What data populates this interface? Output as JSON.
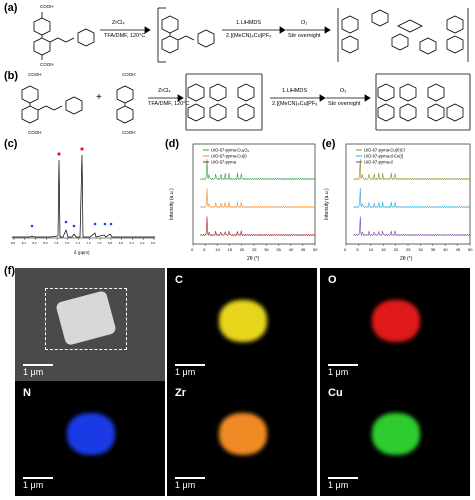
{
  "panels": {
    "a": "(a)",
    "b": "(b)",
    "c": "(c)",
    "d": "(d)",
    "e": "(e)",
    "f": "(f)"
  },
  "scheme": {
    "a_step1_top": "ZrCl₄",
    "a_step1_bot": "TFA/DMF, 120°C",
    "a_step2_top": "1.LiHMDS",
    "a_step2_bot": "2.[(MeCN)₄Cu]PF₆",
    "a_step3_top": "O₂",
    "a_step3_bot": "Stir overnight",
    "b_step1_top": "ZrCl₄",
    "b_step1_bot": "TFA/DMF, 120°C",
    "b_step2_top": "1.LiHMDS",
    "b_step2_bot": "2.[(MeCN)₄Cu]PF₆",
    "b_step3_top": "O₂",
    "b_step3_bot": "Stir overnight",
    "plus": "+",
    "cooh": "COOH"
  },
  "nmr": {
    "xlabel": "δ (ppm)",
    "ticks": [
      "8.6",
      "8.4",
      "8.2",
      "8.0",
      "7.8",
      "7.6",
      "7.4",
      "7.2",
      "7.0",
      "6.8",
      "6.6",
      "6.4",
      "6.2",
      "6.0"
    ]
  },
  "chart_data": [
    {
      "type": "line",
      "panel": "d",
      "xlabel": "2θ (°)",
      "ylabel": "Intensity (a.u.)",
      "xlim": [
        0,
        50
      ],
      "xticks": [
        0,
        5,
        10,
        15,
        20,
        25,
        30,
        35,
        40,
        45,
        50
      ],
      "series": [
        {
          "name": "UiO-67-pyma-Cu₂O₂",
          "color": "#2e9d3a"
        },
        {
          "name": "UiO-67-pyma-Cu(I)",
          "color": "#f08a24"
        },
        {
          "name": "UiO-67-pyma",
          "color": "#9b1c1c"
        }
      ]
    },
    {
      "type": "line",
      "panel": "e",
      "xlabel": "2θ (°)",
      "ylabel": "Intensity (a.u.)",
      "xlim": [
        0,
        50
      ],
      "xticks": [
        0,
        5,
        10,
        15,
        20,
        25,
        30,
        35,
        40,
        45,
        50
      ],
      "series": [
        {
          "name": "UiO-67-pyma-Cu(II)Cl",
          "color": "#8a8a1e"
        },
        {
          "name": "UiO-67-pyma-d-Cu(I)",
          "color": "#2aa8e0"
        },
        {
          "name": "UiO-67-pyma-d",
          "color": "#7b3fa0"
        }
      ]
    }
  ],
  "eds": {
    "scale": "1 μm",
    "tiles": [
      {
        "label": "C",
        "color": "#e6d51a"
      },
      {
        "label": "O",
        "color": "#e01a1a"
      },
      {
        "label": "N",
        "color": "#1a3ae6"
      },
      {
        "label": "Zr",
        "color": "#f08a24"
      },
      {
        "label": "Cu",
        "color": "#2ecc2e"
      }
    ]
  }
}
